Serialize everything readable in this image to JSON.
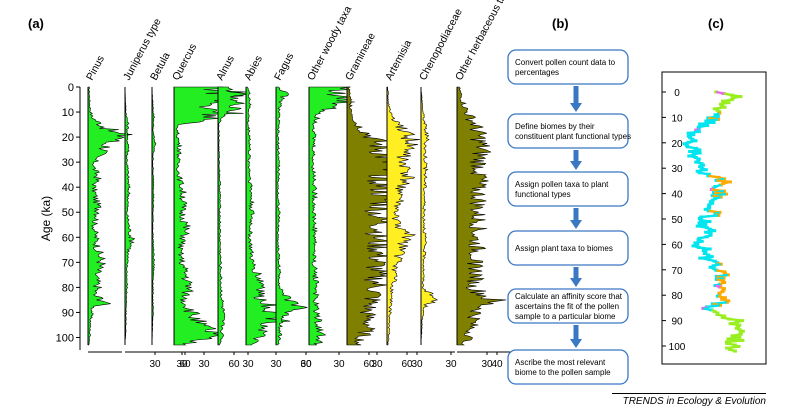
{
  "panel_a_label": "(a)",
  "panel_b_label": "(b)",
  "panel_c_label": "(c)",
  "credit": "TRENDS in Ecology & Evolution",
  "colors": {
    "woody": "#22ee22",
    "gramineae": "#808000",
    "artemisia": "#ffee22",
    "flow_border": "#3b78c4",
    "flow_arrow": "#3b78c4"
  },
  "chart_data": {
    "type": "area",
    "ylabel": "Age (ka)",
    "ylim": [
      0,
      105
    ],
    "yticks": [
      0,
      10,
      20,
      30,
      40,
      50,
      60,
      70,
      80,
      90,
      100
    ],
    "series": [
      {
        "name": "Pinus",
        "color": "#22ee22",
        "xmax": 75,
        "xticks": [],
        "profile": [
          [
            0,
            1
          ],
          [
            8,
            2
          ],
          [
            12,
            4
          ],
          [
            14,
            10
          ],
          [
            18,
            25
          ],
          [
            20,
            40
          ],
          [
            22,
            20
          ],
          [
            25,
            18
          ],
          [
            28,
            8
          ],
          [
            32,
            6
          ],
          [
            36,
            10
          ],
          [
            40,
            6
          ],
          [
            45,
            8
          ],
          [
            50,
            12
          ],
          [
            55,
            6
          ],
          [
            60,
            8
          ],
          [
            65,
            10
          ],
          [
            70,
            14
          ],
          [
            75,
            8
          ],
          [
            80,
            10
          ],
          [
            83,
            6
          ],
          [
            86,
            20
          ],
          [
            88,
            5
          ],
          [
            92,
            3
          ],
          [
            96,
            2
          ],
          [
            100,
            2
          ],
          [
            103,
            1
          ]
        ]
      },
      {
        "name": "Juniperus type",
        "color": "#22ee22",
        "xmax": 75,
        "xticks": [
          30,
          60
        ],
        "profile": [
          [
            0,
            0
          ],
          [
            10,
            1
          ],
          [
            15,
            3
          ],
          [
            20,
            2
          ],
          [
            24,
            4
          ],
          [
            28,
            2
          ],
          [
            35,
            3
          ],
          [
            42,
            4
          ],
          [
            50,
            2
          ],
          [
            58,
            5
          ],
          [
            62,
            8
          ],
          [
            66,
            3
          ],
          [
            72,
            2
          ],
          [
            80,
            2
          ],
          [
            88,
            1
          ],
          [
            96,
            1
          ],
          [
            103,
            0
          ]
        ]
      },
      {
        "name": "Betula",
        "color": "#22ee22",
        "xmax": 75,
        "xticks": [
          30
        ],
        "profile": [
          [
            0,
            0
          ],
          [
            8,
            1
          ],
          [
            12,
            2
          ],
          [
            18,
            1
          ],
          [
            22,
            3
          ],
          [
            28,
            1
          ],
          [
            35,
            1
          ],
          [
            40,
            2
          ],
          [
            50,
            1
          ],
          [
            60,
            1
          ],
          [
            70,
            2
          ],
          [
            80,
            1
          ],
          [
            90,
            1
          ],
          [
            103,
            0
          ]
        ]
      },
      {
        "name": "Quercus",
        "color": "#22ee22",
        "xmax": 75,
        "xticks": [
          30,
          60
        ],
        "profile": [
          [
            0,
            45
          ],
          [
            4,
            62
          ],
          [
            6,
            40
          ],
          [
            8,
            30
          ],
          [
            10,
            55
          ],
          [
            12,
            45
          ],
          [
            14,
            20
          ],
          [
            15,
            3
          ],
          [
            20,
            4
          ],
          [
            25,
            6
          ],
          [
            30,
            4
          ],
          [
            35,
            5
          ],
          [
            40,
            8
          ],
          [
            45,
            10
          ],
          [
            50,
            8
          ],
          [
            55,
            12
          ],
          [
            60,
            10
          ],
          [
            65,
            6
          ],
          [
            70,
            8
          ],
          [
            75,
            12
          ],
          [
            80,
            15
          ],
          [
            85,
            10
          ],
          [
            90,
            18
          ],
          [
            95,
            25
          ],
          [
            98,
            40
          ],
          [
            100,
            30
          ],
          [
            103,
            10
          ]
        ]
      },
      {
        "name": "Alnus",
        "color": "#22ee22",
        "xmax": 75,
        "xticks": [
          30
        ],
        "profile": [
          [
            0,
            8
          ],
          [
            3,
            20
          ],
          [
            5,
            12
          ],
          [
            7,
            22
          ],
          [
            9,
            15
          ],
          [
            11,
            8
          ],
          [
            13,
            3
          ],
          [
            15,
            1
          ],
          [
            25,
            1
          ],
          [
            40,
            2
          ],
          [
            60,
            2
          ],
          [
            80,
            3
          ],
          [
            90,
            5
          ],
          [
            100,
            4
          ],
          [
            103,
            2
          ]
        ]
      },
      {
        "name": "Abies",
        "color": "#22ee22",
        "xmax": 75,
        "xticks": [
          30,
          60
        ],
        "profile": [
          [
            0,
            2
          ],
          [
            5,
            4
          ],
          [
            10,
            3
          ],
          [
            15,
            2
          ],
          [
            20,
            4
          ],
          [
            30,
            3
          ],
          [
            40,
            5
          ],
          [
            50,
            6
          ],
          [
            60,
            4
          ],
          [
            70,
            6
          ],
          [
            75,
            12
          ],
          [
            80,
            18
          ],
          [
            84,
            12
          ],
          [
            87,
            25
          ],
          [
            90,
            30
          ],
          [
            93,
            35
          ],
          [
            96,
            20
          ],
          [
            100,
            12
          ],
          [
            103,
            5
          ]
        ]
      },
      {
        "name": "Fagus",
        "color": "#22ee22",
        "xmax": 75,
        "xticks": [
          30
        ],
        "profile": [
          [
            0,
            3
          ],
          [
            3,
            10
          ],
          [
            5,
            5
          ],
          [
            10,
            3
          ],
          [
            20,
            2
          ],
          [
            30,
            3
          ],
          [
            40,
            2
          ],
          [
            50,
            3
          ],
          [
            60,
            2
          ],
          [
            70,
            3
          ],
          [
            80,
            4
          ],
          [
            85,
            12
          ],
          [
            88,
            30
          ],
          [
            90,
            10
          ],
          [
            95,
            5
          ],
          [
            100,
            4
          ],
          [
            103,
            2
          ]
        ]
      },
      {
        "name": "Other woody taxa",
        "color": "#22ee22",
        "xmax": 75,
        "xticks": [
          30,
          60
        ],
        "profile": [
          [
            0,
            40
          ],
          [
            3,
            25
          ],
          [
            5,
            35
          ],
          [
            8,
            30
          ],
          [
            10,
            12
          ],
          [
            15,
            6
          ],
          [
            20,
            5
          ],
          [
            30,
            4
          ],
          [
            40,
            6
          ],
          [
            50,
            5
          ],
          [
            60,
            6
          ],
          [
            70,
            5
          ],
          [
            80,
            8
          ],
          [
            85,
            6
          ],
          [
            90,
            8
          ],
          [
            95,
            10
          ],
          [
            100,
            12
          ],
          [
            103,
            8
          ]
        ]
      },
      {
        "name": "Gramineae",
        "color": "#808000",
        "xmax": 75,
        "xticks": [
          30,
          60
        ],
        "profile": [
          [
            0,
            2
          ],
          [
            5,
            3
          ],
          [
            10,
            5
          ],
          [
            15,
            10
          ],
          [
            20,
            25
          ],
          [
            25,
            35
          ],
          [
            30,
            40
          ],
          [
            35,
            38
          ],
          [
            40,
            35
          ],
          [
            45,
            38
          ],
          [
            50,
            30
          ],
          [
            55,
            35
          ],
          [
            60,
            30
          ],
          [
            65,
            32
          ],
          [
            70,
            30
          ],
          [
            75,
            28
          ],
          [
            80,
            30
          ],
          [
            85,
            25
          ],
          [
            90,
            20
          ],
          [
            95,
            22
          ],
          [
            100,
            15
          ],
          [
            103,
            10
          ]
        ]
      },
      {
        "name": "Artemisia",
        "color": "#ffee22",
        "xmax": 75,
        "xticks": [
          30
        ],
        "profile": [
          [
            0,
            1
          ],
          [
            5,
            1
          ],
          [
            10,
            3
          ],
          [
            15,
            10
          ],
          [
            20,
            25
          ],
          [
            25,
            20
          ],
          [
            30,
            15
          ],
          [
            35,
            20
          ],
          [
            40,
            15
          ],
          [
            45,
            12
          ],
          [
            50,
            8
          ],
          [
            55,
            10
          ],
          [
            60,
            22
          ],
          [
            65,
            15
          ],
          [
            70,
            10
          ],
          [
            75,
            8
          ],
          [
            80,
            5
          ],
          [
            85,
            4
          ],
          [
            90,
            3
          ],
          [
            95,
            2
          ],
          [
            100,
            2
          ],
          [
            103,
            1
          ]
        ]
      },
      {
        "name": "Chenopodiaceae",
        "color": "#ffee22",
        "xmax": 75,
        "xticks": [
          30
        ],
        "profile": [
          [
            0,
            0
          ],
          [
            5,
            1
          ],
          [
            10,
            2
          ],
          [
            15,
            4
          ],
          [
            20,
            6
          ],
          [
            25,
            4
          ],
          [
            30,
            5
          ],
          [
            40,
            4
          ],
          [
            50,
            3
          ],
          [
            60,
            4
          ],
          [
            70,
            3
          ],
          [
            80,
            2
          ],
          [
            85,
            15
          ],
          [
            87,
            5
          ],
          [
            90,
            2
          ],
          [
            95,
            1
          ],
          [
            103,
            0
          ]
        ]
      },
      {
        "name": "Other herbaceous taxa",
        "color": "#808000",
        "xmax": 75,
        "xticks": [
          30,
          40,
          60
        ],
        "profile": [
          [
            0,
            2
          ],
          [
            5,
            5
          ],
          [
            10,
            10
          ],
          [
            15,
            18
          ],
          [
            20,
            22
          ],
          [
            25,
            25
          ],
          [
            30,
            22
          ],
          [
            35,
            25
          ],
          [
            40,
            20
          ],
          [
            45,
            22
          ],
          [
            50,
            20
          ],
          [
            55,
            22
          ],
          [
            60,
            18
          ],
          [
            65,
            20
          ],
          [
            70,
            18
          ],
          [
            75,
            20
          ],
          [
            80,
            15
          ],
          [
            85,
            35
          ],
          [
            88,
            25
          ],
          [
            90,
            20
          ],
          [
            95,
            15
          ],
          [
            100,
            12
          ],
          [
            103,
            8
          ]
        ]
      }
    ]
  },
  "flowchart": {
    "steps": [
      [
        "Convert pollen count data to",
        "percentages"
      ],
      [
        "Define biomes by their",
        "constituent plant functional types"
      ],
      [
        "Assign pollen taxa to plant",
        "functional types"
      ],
      [
        "Assign plant taxa to biomes"
      ],
      [
        "Calculate an affinity score that",
        "ascertains the fit of the pollen",
        "sample to a particular biome"
      ],
      [
        "Ascribe the most relevant",
        "biome to the pollen sample"
      ]
    ]
  },
  "panel_c": {
    "yticks": [
      0,
      10,
      20,
      30,
      40,
      50,
      60,
      70,
      80,
      90,
      100
    ],
    "trace": [
      [
        0,
        0.55
      ],
      [
        2,
        0.8
      ],
      [
        3,
        0.6
      ],
      [
        5,
        0.55
      ],
      [
        7,
        0.5
      ],
      [
        10,
        0.45
      ],
      [
        12,
        0.35
      ],
      [
        14,
        0.25
      ],
      [
        16,
        0.15
      ],
      [
        18,
        0.05
      ],
      [
        20,
        0.12
      ],
      [
        22,
        0.08
      ],
      [
        24,
        0.2
      ],
      [
        26,
        0.15
      ],
      [
        28,
        0.3
      ],
      [
        30,
        0.22
      ],
      [
        32,
        0.35
      ],
      [
        34,
        0.5
      ],
      [
        36,
        0.6
      ],
      [
        38,
        0.45
      ],
      [
        40,
        0.55
      ],
      [
        42,
        0.4
      ],
      [
        44,
        0.5
      ],
      [
        46,
        0.35
      ],
      [
        48,
        0.45
      ],
      [
        50,
        0.3
      ],
      [
        52,
        0.25
      ],
      [
        54,
        0.35
      ],
      [
        56,
        0.45
      ],
      [
        58,
        0.3
      ],
      [
        60,
        0.2
      ],
      [
        62,
        0.35
      ],
      [
        64,
        0.4
      ],
      [
        66,
        0.3
      ],
      [
        68,
        0.45
      ],
      [
        70,
        0.55
      ],
      [
        72,
        0.6
      ],
      [
        74,
        0.5
      ],
      [
        76,
        0.55
      ],
      [
        78,
        0.65
      ],
      [
        80,
        0.5
      ],
      [
        82,
        0.6
      ],
      [
        84,
        0.45
      ],
      [
        86,
        0.3
      ],
      [
        88,
        0.6
      ],
      [
        90,
        0.75
      ],
      [
        92,
        0.7
      ],
      [
        95,
        0.8
      ],
      [
        98,
        0.75
      ],
      [
        100,
        0.7
      ],
      [
        102,
        0.65
      ]
    ],
    "colors": [
      "#00e5ee",
      "#ffaa00",
      "#99ee22",
      "#ee66ee"
    ]
  }
}
